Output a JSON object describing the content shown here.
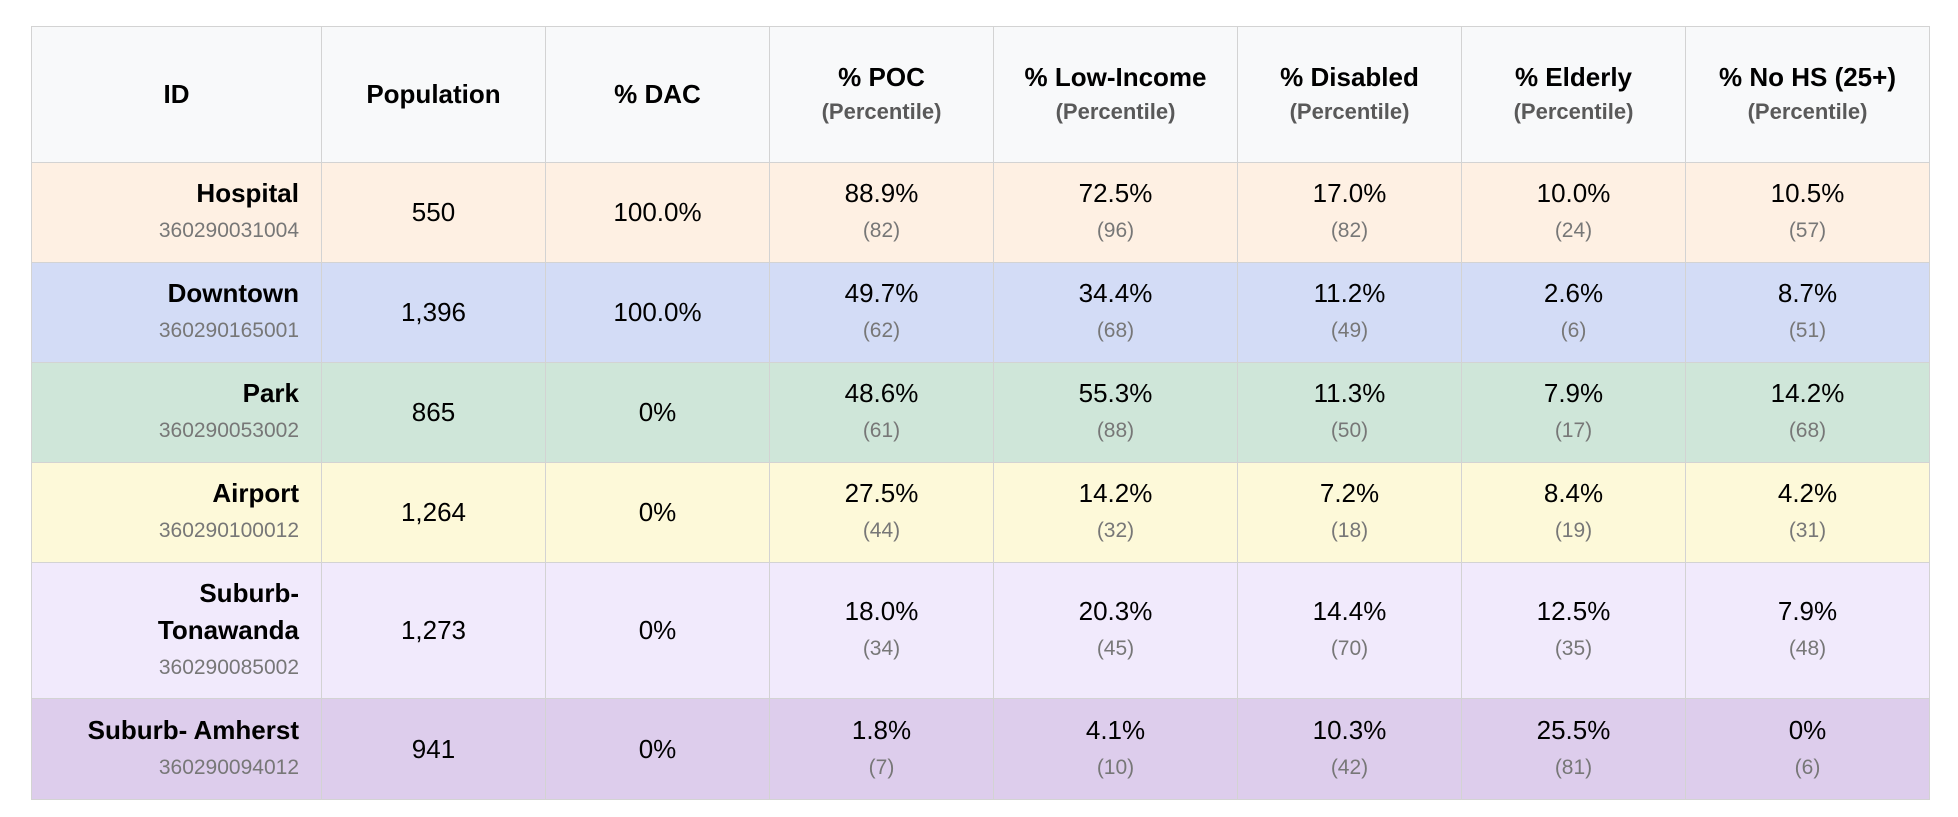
{
  "headers": {
    "id": "ID",
    "population": "Population",
    "dac": "% DAC",
    "poc": "% POC",
    "low_income": "% Low-Income",
    "disabled": "% Disabled",
    "elderly": "% Elderly",
    "no_hs": "% No HS (25+)",
    "percentile_sub": "(Percentile)"
  },
  "colors": {
    "header_bg": "#f8f9fa",
    "hospital": "#fef0e3",
    "downtown": "#d3dcf6",
    "park": "#cfe6d9",
    "airport": "#fdf9d9",
    "tonawanda": "#f1eafc",
    "amherst": "#ddcdec"
  },
  "rows": [
    {
      "name": "Hospital",
      "geoid": "360290031004",
      "population": "550",
      "dac": "100.0%",
      "poc": {
        "value": "88.9%",
        "pctl": "(82)"
      },
      "low_income": {
        "value": "72.5%",
        "pctl": "(96)"
      },
      "disabled": {
        "value": "17.0%",
        "pctl": "(82)"
      },
      "elderly": {
        "value": "10.0%",
        "pctl": "(24)"
      },
      "no_hs": {
        "value": "10.5%",
        "pctl": "(57)"
      }
    },
    {
      "name": "Downtown",
      "geoid": "360290165001",
      "population": "1,396",
      "dac": "100.0%",
      "poc": {
        "value": "49.7%",
        "pctl": "(62)"
      },
      "low_income": {
        "value": "34.4%",
        "pctl": "(68)"
      },
      "disabled": {
        "value": "11.2%",
        "pctl": "(49)"
      },
      "elderly": {
        "value": "2.6%",
        "pctl": "(6)"
      },
      "no_hs": {
        "value": "8.7%",
        "pctl": "(51)"
      }
    },
    {
      "name": "Park",
      "geoid": "360290053002",
      "population": "865",
      "dac": "0%",
      "poc": {
        "value": "48.6%",
        "pctl": "(61)"
      },
      "low_income": {
        "value": "55.3%",
        "pctl": "(88)"
      },
      "disabled": {
        "value": "11.3%",
        "pctl": "(50)"
      },
      "elderly": {
        "value": "7.9%",
        "pctl": "(17)"
      },
      "no_hs": {
        "value": "14.2%",
        "pctl": "(68)"
      }
    },
    {
      "name": "Airport",
      "geoid": "360290100012",
      "population": "1,264",
      "dac": "0%",
      "poc": {
        "value": "27.5%",
        "pctl": "(44)"
      },
      "low_income": {
        "value": "14.2%",
        "pctl": "(32)"
      },
      "disabled": {
        "value": "7.2%",
        "pctl": "(18)"
      },
      "elderly": {
        "value": "8.4%",
        "pctl": "(19)"
      },
      "no_hs": {
        "value": "4.2%",
        "pctl": "(31)"
      }
    },
    {
      "name": "Suburb- Tonawanda",
      "geoid": "360290085002",
      "population": "1,273",
      "dac": "0%",
      "poc": {
        "value": "18.0%",
        "pctl": "(34)"
      },
      "low_income": {
        "value": "20.3%",
        "pctl": "(45)"
      },
      "disabled": {
        "value": "14.4%",
        "pctl": "(70)"
      },
      "elderly": {
        "value": "12.5%",
        "pctl": "(35)"
      },
      "no_hs": {
        "value": "7.9%",
        "pctl": "(48)"
      }
    },
    {
      "name": "Suburb- Amherst",
      "geoid": "360290094012",
      "population": "941",
      "dac": "0%",
      "poc": {
        "value": "1.8%",
        "pctl": "(7)"
      },
      "low_income": {
        "value": "4.1%",
        "pctl": "(10)"
      },
      "disabled": {
        "value": "10.3%",
        "pctl": "(42)"
      },
      "elderly": {
        "value": "25.5%",
        "pctl": "(81)"
      },
      "no_hs": {
        "value": "0%",
        "pctl": "(6)"
      }
    }
  ]
}
